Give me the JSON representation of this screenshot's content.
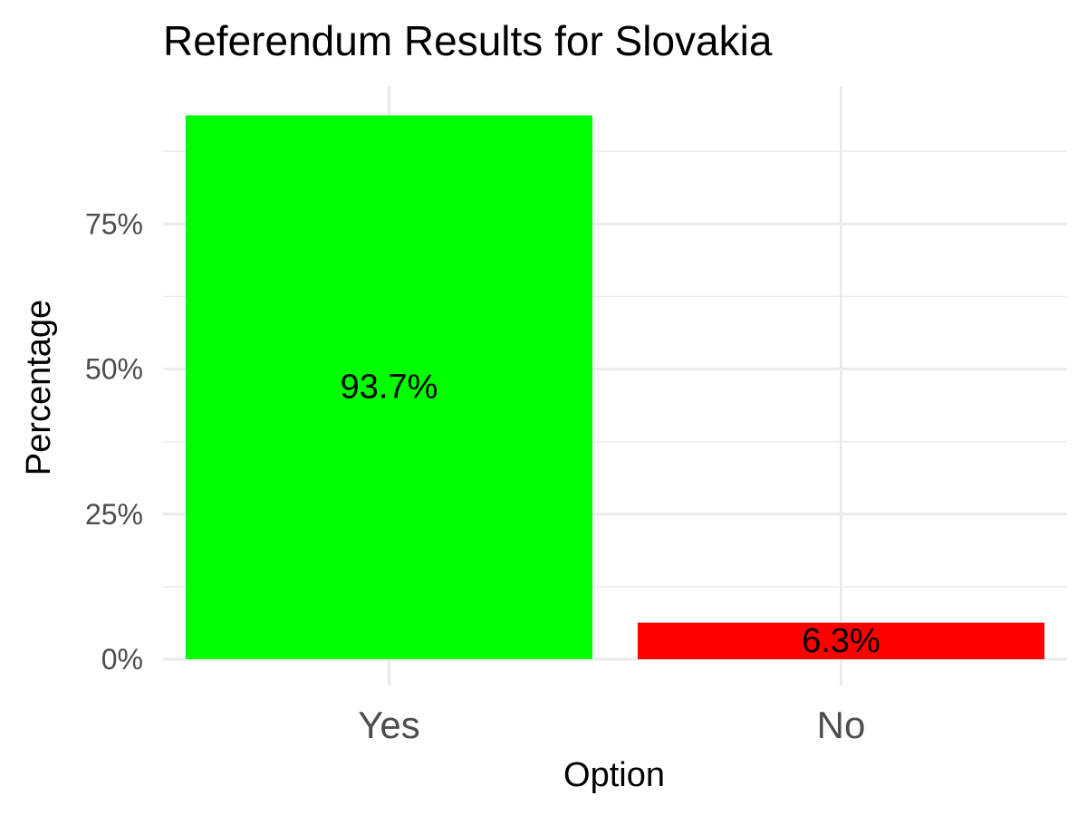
{
  "chart_data": {
    "type": "bar",
    "title": "Referendum Results for Slovakia",
    "xlabel": "Option",
    "ylabel": "Percentage",
    "categories": [
      "Yes",
      "No"
    ],
    "values": [
      93.7,
      6.3
    ],
    "data_labels": [
      "93.7%",
      "6.3%"
    ],
    "colors": [
      "#00ff00",
      "#ff0000"
    ],
    "ylim": [
      0,
      100
    ],
    "y_ticks": [
      {
        "value": 0,
        "label": "0%"
      },
      {
        "value": 25,
        "label": "25%"
      },
      {
        "value": 50,
        "label": "50%"
      },
      {
        "value": 75,
        "label": "75%"
      }
    ],
    "y_minor_ticks": [
      12.5,
      37.5,
      62.5,
      87.5
    ],
    "grid": true,
    "legend": "none"
  }
}
